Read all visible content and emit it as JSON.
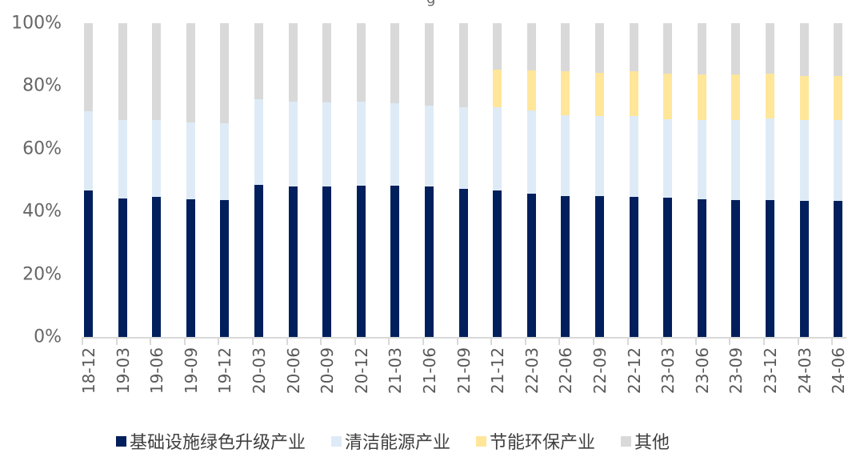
{
  "chart_data": {
    "type": "bar",
    "stacked": true,
    "percent": true,
    "title": "",
    "xlabel": "",
    "ylabel": "",
    "ylim": [
      0,
      100
    ],
    "yticks": [
      "0%",
      "20%",
      "40%",
      "60%",
      "80%",
      "100%"
    ],
    "grid": false,
    "legend_position": "bottom",
    "categories": [
      "18-12",
      "19-03",
      "19-06",
      "19-09",
      "19-12",
      "20-03",
      "20-06",
      "20-09",
      "20-12",
      "21-03",
      "21-06",
      "21-09",
      "21-12",
      "22-03",
      "22-06",
      "22-09",
      "22-12",
      "23-03",
      "23-06",
      "23-09",
      "23-12",
      "24-03",
      "24-06"
    ],
    "series": [
      {
        "name": "基础设施绿色升级产业",
        "color": "#001f5c",
        "values": [
          46.7,
          44.1,
          44.6,
          43.9,
          43.6,
          48.5,
          48.0,
          48.0,
          48.2,
          48.2,
          48.0,
          47.2,
          46.7,
          45.7,
          44.9,
          44.9,
          44.6,
          44.3,
          43.9,
          43.6,
          43.6,
          43.4,
          43.4
        ]
      },
      {
        "name": "清洁能源产业",
        "color": "#deebf7",
        "values": [
          25.2,
          25.0,
          24.5,
          24.5,
          24.5,
          27.3,
          27.0,
          26.7,
          26.8,
          26.3,
          25.7,
          26.0,
          26.5,
          26.5,
          25.8,
          25.5,
          25.8,
          25.1,
          25.2,
          25.5,
          26.0,
          25.7,
          25.7
        ]
      },
      {
        "name": "节能环保产业",
        "color": "#ffe699",
        "values": [
          0,
          0,
          0,
          0,
          0,
          0,
          0,
          0,
          0,
          0,
          0,
          0,
          12.0,
          12.7,
          14.0,
          13.8,
          14.3,
          14.5,
          14.6,
          14.6,
          14.3,
          14.1,
          14.1
        ]
      },
      {
        "name": "其他",
        "color": "#d9d9d9",
        "values": [
          28.1,
          30.9,
          30.9,
          31.6,
          31.9,
          24.2,
          25.0,
          25.3,
          25.0,
          25.5,
          26.3,
          26.8,
          14.8,
          15.1,
          15.3,
          15.8,
          15.3,
          16.1,
          16.3,
          16.3,
          16.1,
          16.8,
          16.8
        ]
      }
    ]
  },
  "legend": {
    "items": [
      {
        "label": "基础设施绿色升级产业",
        "color": "#001f5c"
      },
      {
        "label": "清洁能源产业",
        "color": "#deebf7"
      },
      {
        "label": "节能环保产业",
        "color": "#ffe699"
      },
      {
        "label": "其他",
        "color": "#d9d9d9"
      }
    ]
  },
  "title_fragment": "g"
}
